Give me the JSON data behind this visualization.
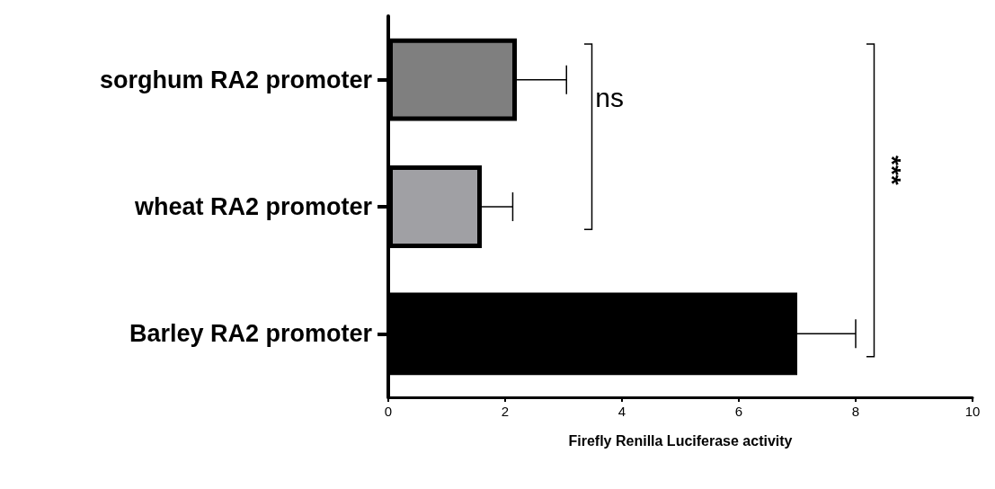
{
  "chart_data": {
    "type": "bar",
    "orientation": "horizontal",
    "categories": [
      "sorghum RA2 promoter",
      "wheat RA2 promoter",
      "Barley RA2 promoter"
    ],
    "values": [
      2.2,
      1.6,
      7.0
    ],
    "colors": [
      "#7f7f7f",
      "#a0a0a4",
      "#000000"
    ],
    "errors": [
      [
        2.2,
        3.05
      ],
      [
        1.6,
        2.13
      ],
      [
        7.0,
        8.0
      ]
    ],
    "xlim": [
      0,
      10
    ],
    "xticks": [
      0,
      2,
      4,
      6,
      8,
      10
    ],
    "xlabel": "Firefly Renilla Luciferase activity",
    "annotations": [
      "ns",
      "***"
    ],
    "grid": false
  }
}
